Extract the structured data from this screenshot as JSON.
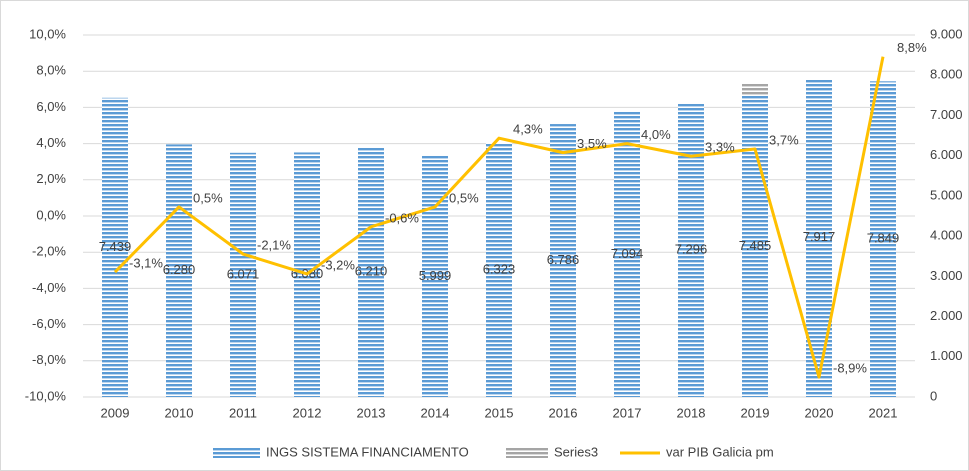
{
  "chart_data": {
    "type": "bar+line",
    "categories": [
      "2009",
      "2010",
      "2011",
      "2012",
      "2013",
      "2014",
      "2015",
      "2016",
      "2017",
      "2018",
      "2019",
      "2020",
      "2021"
    ],
    "series": [
      {
        "name": "INGS SISTEMA FINANCIAMENTO",
        "type": "bar",
        "axis": "y2",
        "color": "#5b9bd5",
        "values": [
          7439,
          6280,
          6071,
          6080,
          6210,
          5999,
          6323,
          6786,
          7094,
          7296,
          7485,
          7917,
          7849
        ],
        "value_labels": [
          "7.439",
          "6.280",
          "6.071",
          "6.080",
          "6.210",
          "5.999",
          "6.323",
          "6.786",
          "7.094",
          "7.296",
          "7.485",
          "7.917",
          "7.849"
        ]
      },
      {
        "name": "Series3",
        "type": "bar",
        "axis": "y2",
        "color": "#a5a5a5",
        "values": [
          null,
          null,
          null,
          null,
          null,
          null,
          null,
          null,
          null,
          null,
          300,
          null,
          null
        ]
      },
      {
        "name": "var PIB Galicia pm",
        "type": "line",
        "axis": "y",
        "color": "#ffc000",
        "values": [
          -3.1,
          0.5,
          -2.1,
          -3.2,
          -0.6,
          0.5,
          4.3,
          3.5,
          4.0,
          3.3,
          3.7,
          -8.9,
          8.8
        ],
        "value_labels": [
          "-3,1%",
          "0,5%",
          "-2,1%",
          "-3,2%",
          "-0,6%",
          "0,5%",
          "4,3%",
          "3,5%",
          "4,0%",
          "3,3%",
          "3,7%",
          "-8,9%",
          "8,8%"
        ]
      }
    ],
    "ylim": [
      -10,
      10
    ],
    "yticks": [
      {
        "value": -10,
        "label": "-10,0%"
      },
      {
        "value": -8,
        "label": "-8,0%"
      },
      {
        "value": -6,
        "label": "-6,0%"
      },
      {
        "value": -4,
        "label": "-4,0%"
      },
      {
        "value": -2,
        "label": "-2,0%"
      },
      {
        "value": 0,
        "label": "0,0%"
      },
      {
        "value": 2,
        "label": "2,0%"
      },
      {
        "value": 4,
        "label": "4,0%"
      },
      {
        "value": 6,
        "label": "6,0%"
      },
      {
        "value": 8,
        "label": "8,0%"
      },
      {
        "value": 10,
        "label": "10,0%"
      }
    ],
    "y2lim": [
      0,
      9000
    ],
    "y2ticks": [
      0,
      {
        "value": 1000,
        "label": "1.000"
      },
      {
        "value": 2000,
        "label": "2.000"
      },
      {
        "value": 3000,
        "label": "3.000"
      },
      {
        "value": 4000,
        "label": "4.000"
      },
      {
        "value": 5000,
        "label": "5.000"
      },
      {
        "value": 6000,
        "label": "6.000"
      },
      {
        "value": 7000,
        "label": "7.000"
      },
      {
        "value": 8000,
        "label": "8.000"
      },
      {
        "value": 9000,
        "label": "9.000"
      }
    ],
    "legend": "bottom"
  }
}
